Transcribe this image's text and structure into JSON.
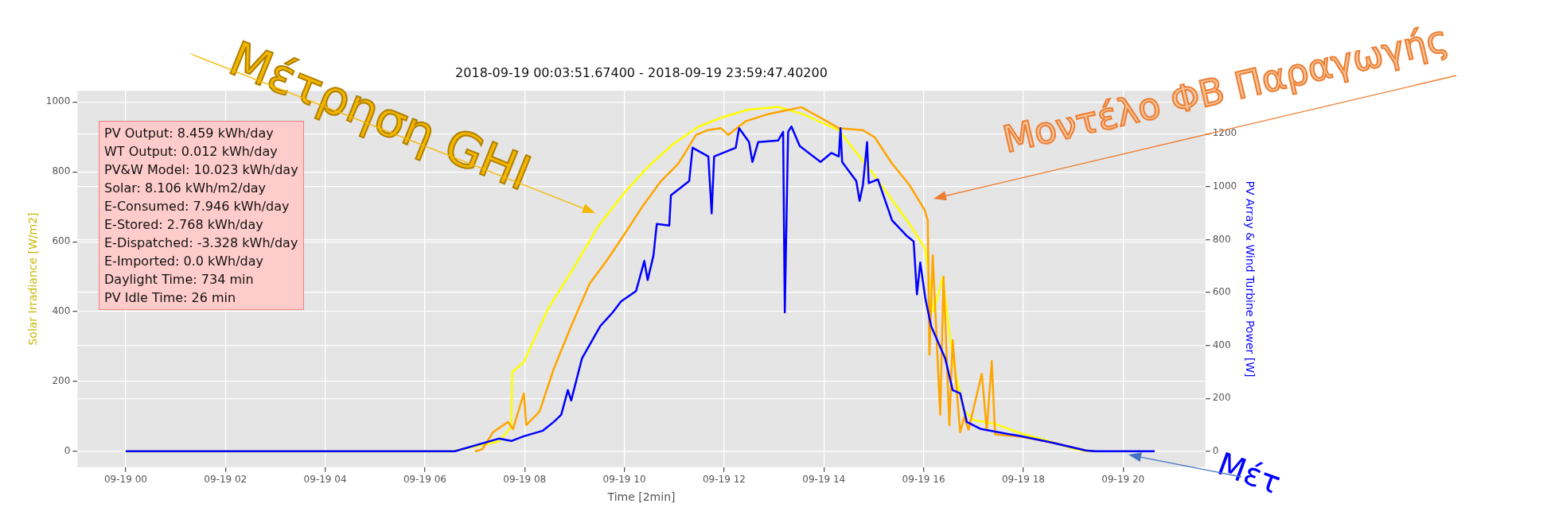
{
  "chart_data": {
    "type": "line",
    "title": "2018-09-19 00:03:51.67400 - 2018-09-19 23:59:47.40200",
    "xlabel": "Time [2min]",
    "ylabel": "Solar Irradiance [W/m2]",
    "y2label": "PV Array & Wind Turbine Power [W]",
    "xlim": [
      "2018-09-18T23:02",
      "2018-09-19T21:39"
    ],
    "xticks": [
      {
        "value": "2018-09-19T00:00",
        "label": "09-19 00"
      },
      {
        "value": "2018-09-19T02:00",
        "label": "09-19 02"
      },
      {
        "value": "2018-09-19T04:00",
        "label": "09-19 04"
      },
      {
        "value": "2018-09-19T06:00",
        "label": "09-19 06"
      },
      {
        "value": "2018-09-19T08:00",
        "label": "09-19 08"
      },
      {
        "value": "2018-09-19T10:00",
        "label": "09-19 10"
      },
      {
        "value": "2018-09-19T12:00",
        "label": "09-19 12"
      },
      {
        "value": "2018-09-19T14:00",
        "label": "09-19 14"
      },
      {
        "value": "2018-09-19T16:00",
        "label": "09-19 16"
      },
      {
        "value": "2018-09-19T18:00",
        "label": "09-19 18"
      },
      {
        "value": "2018-09-19T20:00",
        "label": "09-19 20"
      }
    ],
    "ylim": [
      -45,
      1032
    ],
    "yticks": [
      0,
      200,
      400,
      600,
      800,
      1000
    ],
    "y2lim": [
      -60,
      1362
    ],
    "y2ticks": [
      0,
      200,
      400,
      600,
      800,
      1000,
      1200
    ],
    "grid": true,
    "legend": false,
    "series": [
      {
        "color": "#ffff00",
        "x": [
          "2018-09-19T00:00",
          "2018-09-19T06:32",
          "2018-09-19T07:29",
          "2018-09-19T07:44",
          "2018-09-19T07:45",
          "2018-09-19T07:59",
          "2018-09-19T08:29",
          "2018-09-19T08:59",
          "2018-09-19T09:29",
          "2018-09-19T09:59",
          "2018-09-19T10:29",
          "2018-09-19T10:59",
          "2018-09-19T11:29",
          "2018-09-19T11:59",
          "2018-09-19T12:29",
          "2018-09-19T13:05",
          "2018-09-19T13:35",
          "2018-09-19T14:18",
          "2018-09-19T15:00",
          "2018-09-19T15:43",
          "2018-09-19T16:02",
          "2018-09-19T16:12",
          "2018-09-19T16:23",
          "2018-09-19T16:36",
          "2018-09-19T16:48",
          "2018-09-19T17:00",
          "2018-09-19T17:24",
          "2018-09-19T17:57",
          "2018-09-19T18:30",
          "2018-09-19T19:00",
          "2018-09-19T19:18"
        ],
        "values": [
          0,
          0,
          29,
          71,
          227,
          256,
          412,
          525,
          646,
          737,
          816,
          880,
          929,
          957,
          978,
          986,
          965,
          919,
          792,
          651,
          580,
          400,
          499,
          250,
          120,
          90,
          80,
          52,
          30,
          8,
          0
        ]
      },
      {
        "color": "#ffa500",
        "axis": "y2",
        "x": [
          "2018-09-19T07:00",
          "2018-09-19T07:09",
          "2018-09-19T07:22",
          "2018-09-19T07:40",
          "2018-09-19T07:46",
          "2018-09-19T07:59",
          "2018-09-19T08:02",
          "2018-09-19T08:18",
          "2018-09-19T08:35",
          "2018-09-19T08:56",
          "2018-09-19T09:18",
          "2018-09-19T09:40",
          "2018-09-19T10:00",
          "2018-09-19T10:22",
          "2018-09-19T10:44",
          "2018-09-19T11:05",
          "2018-09-19T11:26",
          "2018-09-19T11:40",
          "2018-09-19T11:56",
          "2018-09-19T12:05",
          "2018-09-19T12:26",
          "2018-09-19T12:52",
          "2018-09-19T13:13",
          "2018-09-19T13:33",
          "2018-09-19T13:56",
          "2018-09-19T14:18",
          "2018-09-19T14:47",
          "2018-09-19T15:01",
          "2018-09-19T15:22",
          "2018-09-19T15:43",
          "2018-09-19T16:01",
          "2018-09-19T16:05",
          "2018-09-19T16:07",
          "2018-09-19T16:11",
          "2018-09-19T16:20",
          "2018-09-19T16:24",
          "2018-09-19T16:31",
          "2018-09-19T16:35",
          "2018-09-19T16:44",
          "2018-09-19T16:49",
          "2018-09-19T16:54",
          "2018-09-19T17:10",
          "2018-09-19T17:16",
          "2018-09-19T17:22",
          "2018-09-19T17:26",
          "2018-09-19T17:58",
          "2018-09-19T18:34",
          "2018-09-19T19:15",
          "2018-09-19T19:26"
        ],
        "values": [
          0,
          7,
          72,
          111,
          84,
          219,
          99,
          151,
          311,
          473,
          632,
          726,
          820,
          926,
          1021,
          1087,
          1195,
          1213,
          1221,
          1195,
          1247,
          1273,
          1287,
          1300,
          1260,
          1221,
          1213,
          1187,
          1087,
          1006,
          913,
          873,
          365,
          740,
          138,
          659,
          99,
          419,
          72,
          130,
          81,
          293,
          81,
          341,
          64,
          55,
          33,
          3,
          0
        ]
      },
      {
        "color": "#0000ff",
        "axis": "y2",
        "x": [
          "2018-09-19T00:00",
          "2018-09-19T06:36",
          "2018-09-19T07:29",
          "2018-09-19T07:44",
          "2018-09-19T07:59",
          "2018-09-19T08:22",
          "2018-09-19T08:35",
          "2018-09-19T08:44",
          "2018-09-19T08:52",
          "2018-09-19T08:56",
          "2018-09-19T09:09",
          "2018-09-19T09:31",
          "2018-09-19T09:46",
          "2018-09-19T09:56",
          "2018-09-19T10:14",
          "2018-09-19T10:24",
          "2018-09-19T10:28",
          "2018-09-19T10:35",
          "2018-09-19T10:39",
          "2018-09-19T10:54",
          "2018-09-19T10:56",
          "2018-09-19T11:18",
          "2018-09-19T11:22",
          "2018-09-19T11:41",
          "2018-09-19T11:45",
          "2018-09-19T11:48",
          "2018-09-19T12:14",
          "2018-09-19T12:18",
          "2018-09-19T12:30",
          "2018-09-19T12:34",
          "2018-09-19T12:41",
          "2018-09-19T13:05",
          "2018-09-19T13:11",
          "2018-09-19T13:13",
          "2018-09-19T13:17",
          "2018-09-19T13:21",
          "2018-09-19T13:31",
          "2018-09-19T13:56",
          "2018-09-19T14:09",
          "2018-09-19T14:18",
          "2018-09-19T14:20",
          "2018-09-19T14:22",
          "2018-09-19T14:39",
          "2018-09-19T14:43",
          "2018-09-19T14:47",
          "2018-09-19T14:52",
          "2018-09-19T14:54",
          "2018-09-19T15:05",
          "2018-09-19T15:22",
          "2018-09-19T15:40",
          "2018-09-19T15:48",
          "2018-09-19T15:52",
          "2018-09-19T15:56",
          "2018-09-19T16:02",
          "2018-09-19T16:09",
          "2018-09-19T16:26",
          "2018-09-19T16:35",
          "2018-09-19T16:44",
          "2018-09-19T16:52",
          "2018-09-19T17:09",
          "2018-09-19T17:57",
          "2018-09-19T18:34",
          "2018-09-19T19:15",
          "2018-09-19T19:26",
          "2018-09-19T20:38"
        ],
        "values": [
          0,
          0,
          48,
          39,
          57,
          78,
          111,
          138,
          231,
          192,
          351,
          473,
          525,
          566,
          605,
          719,
          647,
          740,
          859,
          853,
          967,
          1021,
          1147,
          1114,
          899,
          1114,
          1147,
          1221,
          1168,
          1093,
          1168,
          1174,
          1207,
          525,
          1207,
          1227,
          1153,
          1093,
          1127,
          1114,
          1221,
          1093,
          1021,
          946,
          1006,
          1168,
          1013,
          1027,
          873,
          813,
          793,
          593,
          713,
          579,
          473,
          351,
          231,
          219,
          111,
          84,
          57,
          33,
          3,
          0,
          0
        ]
      }
    ],
    "annotations": [
      "PV Output: 8.459 kWh/day",
      "WT Output: 0.012 kWh/day",
      "PV&W Model: 10.023 kWh/day",
      "Solar: 8.106 kWh/m2/day",
      "E-Consumed: 7.946 kWh/day",
      "E-Stored: 2.768 kWh/day",
      "E-Dispatched: -3.328 kWh/day",
      "E-Imported: 0.0 kWh/day",
      "Daylight Time: 734 min",
      "PV Idle Time: 26 min",
      "Μέτρηση GHI",
      "Μοντέλο ΦΒ Παραγωγής",
      "Μέτ"
    ]
  }
}
